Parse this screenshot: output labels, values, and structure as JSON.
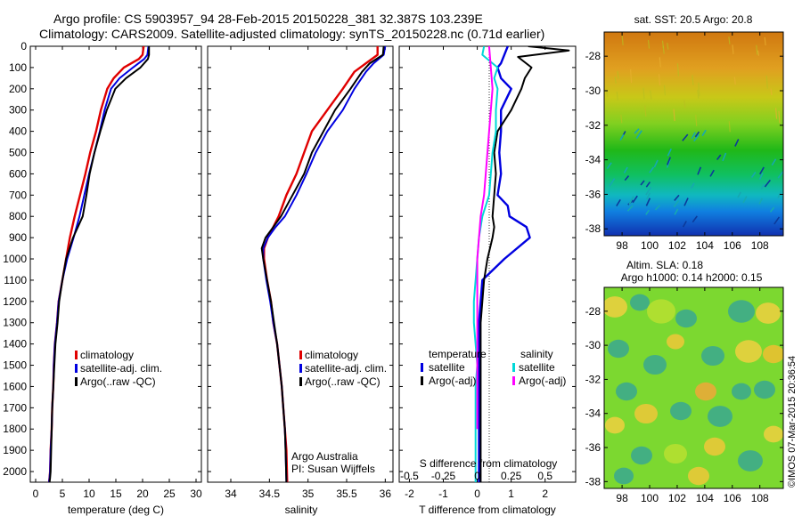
{
  "header": {
    "line1": "Argo profile: CS 5903957_94 28-Feb-2015 20150228_381 32.387S 103.239E",
    "line2": "Climatology: CARS2009. Satellite-adjusted climatology: synTS_20150228.nc (0.71d earlier)"
  },
  "footer": {
    "credit": "Argo Australia",
    "pi": "PI: Susan Wijffels",
    "stamp": "©IMOS 07-Mar-2015 20:36:54"
  },
  "colors": {
    "climatology": "#e00000",
    "satellite": "#0000e0",
    "argo": "#000000",
    "sat_salinity": "#00d8d8",
    "argo_salinity": "#ff00ff"
  },
  "chart_data": [
    {
      "type": "line",
      "panel": "temperature",
      "xlabel": "temperature (deg C)",
      "ylabel": "",
      "xlim": [
        -1,
        31
      ],
      "xticks": [
        0,
        5,
        10,
        15,
        20,
        25,
        30
      ],
      "ylim": [
        2050,
        0
      ],
      "yticks": [
        0,
        100,
        200,
        300,
        400,
        500,
        600,
        700,
        800,
        900,
        1000,
        1100,
        1200,
        1300,
        1400,
        1500,
        1600,
        1700,
        1800,
        1900,
        2000
      ],
      "legend": [
        "climatology",
        "satellite-adj. clim.",
        "Argo(..raw -QC)"
      ],
      "series": [
        {
          "name": "climatology",
          "color": "#e00000",
          "x": [
            20.2,
            20.0,
            19.3,
            16.5,
            14.6,
            13.4,
            12.2,
            11.3,
            10.2,
            9.3,
            8.3,
            7.3,
            6.4,
            5.7,
            5.0,
            4.3,
            4.0,
            3.6,
            3.4,
            3.3,
            3.1,
            3.0,
            2.8,
            2.7,
            2.6,
            2.5
          ],
          "y": [
            0,
            40,
            60,
            100,
            150,
            200,
            300,
            400,
            500,
            600,
            700,
            800,
            900,
            1000,
            1100,
            1200,
            1300,
            1400,
            1500,
            1600,
            1700,
            1800,
            1900,
            2000,
            2030,
            2050
          ]
        },
        {
          "name": "satellite-adj. clim.",
          "color": "#0000e0",
          "x": [
            21.1,
            20.9,
            20.3,
            18.2,
            15.7,
            14.1,
            12.9,
            12.0,
            11.0,
            10.0,
            9.1,
            8.2,
            7.1,
            5.9,
            5.0,
            4.3,
            4.0,
            3.6,
            3.4,
            3.3,
            3.1,
            3.0,
            2.8,
            2.7,
            2.6,
            2.5
          ],
          "y": [
            0,
            40,
            60,
            100,
            150,
            200,
            300,
            400,
            500,
            600,
            700,
            800,
            900,
            1000,
            1100,
            1200,
            1300,
            1400,
            1500,
            1600,
            1700,
            1800,
            1900,
            2000,
            2030,
            2050
          ]
        },
        {
          "name": "Argo(..raw -QC)",
          "color": "#000000",
          "x": [
            21.2,
            21.2,
            21.0,
            19.6,
            16.9,
            14.9,
            13.3,
            12.1,
            11.0,
            10.1,
            9.5,
            8.8,
            7.0,
            5.7,
            5.0,
            4.4,
            4.1,
            3.7,
            3.5,
            3.3,
            3.1,
            3.0,
            2.9,
            2.8,
            2.7,
            2.6
          ],
          "y": [
            0,
            40,
            60,
            100,
            150,
            200,
            300,
            400,
            500,
            600,
            700,
            800,
            900,
            1000,
            1100,
            1200,
            1300,
            1400,
            1500,
            1600,
            1700,
            1800,
            1900,
            2000,
            2030,
            2050
          ]
        }
      ]
    },
    {
      "type": "line",
      "panel": "salinity",
      "xlabel": "salinity",
      "ylabel": "",
      "xlim": [
        33.7,
        36.1
      ],
      "xticks": [
        34,
        34.5,
        35,
        35.5,
        36
      ],
      "ylim": [
        2050,
        0
      ],
      "legend": [
        "climatology",
        "satellite-adj. clim.",
        "Argo(..raw -QC)"
      ],
      "series": [
        {
          "name": "climatology",
          "color": "#e00000",
          "x": [
            35.9,
            35.9,
            35.75,
            35.6,
            35.45,
            35.25,
            35.05,
            34.95,
            34.85,
            34.72,
            34.62,
            34.55,
            34.48,
            34.43,
            34.43,
            34.47,
            34.52,
            34.55,
            34.6,
            34.63,
            34.66,
            34.68,
            34.7,
            34.72,
            34.73
          ],
          "y": [
            0,
            40,
            80,
            120,
            200,
            300,
            400,
            500,
            600,
            700,
            800,
            850,
            900,
            950,
            1000,
            1100,
            1200,
            1300,
            1400,
            1500,
            1600,
            1700,
            1800,
            1900,
            2050
          ]
        },
        {
          "name": "satellite-adj. clim.",
          "color": "#0000e0",
          "x": [
            36.0,
            35.98,
            35.85,
            35.75,
            35.6,
            35.45,
            35.25,
            35.1,
            34.98,
            34.85,
            34.7,
            34.58,
            34.48,
            34.42,
            34.42,
            34.46,
            34.51,
            34.55,
            34.6,
            34.63,
            34.66,
            34.68,
            34.7,
            34.71,
            34.72
          ],
          "y": [
            0,
            40,
            80,
            120,
            200,
            300,
            400,
            500,
            600,
            700,
            800,
            850,
            900,
            950,
            1000,
            1100,
            1200,
            1300,
            1400,
            1500,
            1600,
            1700,
            1800,
            1900,
            2050
          ]
        },
        {
          "name": "Argo(..raw -QC)",
          "color": "#000000",
          "x": [
            35.98,
            35.97,
            35.8,
            35.7,
            35.55,
            35.35,
            35.2,
            35.05,
            34.95,
            34.8,
            34.65,
            34.55,
            34.45,
            34.4,
            34.42,
            34.47,
            34.52,
            34.56,
            34.6,
            34.63,
            34.66,
            34.68,
            34.7,
            34.71,
            34.72
          ],
          "y": [
            0,
            40,
            80,
            120,
            200,
            300,
            400,
            500,
            600,
            700,
            800,
            850,
            900,
            950,
            1000,
            1100,
            1200,
            1300,
            1400,
            1500,
            1600,
            1700,
            1800,
            1900,
            2050
          ]
        }
      ]
    },
    {
      "type": "line",
      "panel": "difference",
      "xlabel": "T difference from climatology",
      "xlabel_top": "S difference from climatology",
      "ylabel": "",
      "xlim": [
        -2.3,
        2.9
      ],
      "xticks": [
        -2,
        -1,
        0,
        1,
        2
      ],
      "xticks_top": [
        "-0.5",
        "-0.25",
        "0",
        "0.25",
        "0.5"
      ],
      "ylim": [
        2050,
        0
      ],
      "legend": {
        "temperature": "temperature",
        "salinity": "salinity",
        "items": [
          "satellite",
          "Argo(-adj)",
          "satellite",
          "Argo(-adj)"
        ]
      },
      "series": [
        {
          "name": "satellite",
          "color": "#0000e0",
          "x": [
            0.9,
            0.8,
            0.7,
            0.6,
            0.7,
            1.0,
            0.7,
            0.7,
            0.65,
            0.7,
            0.6,
            0.9,
            0.95,
            1.45,
            1.55,
            0.8,
            0.15,
            0.1,
            0.05,
            0.05,
            0.05,
            0.05,
            0.05,
            0.05,
            0.05,
            0.05,
            0.05
          ],
          "y": [
            0,
            40,
            80,
            100,
            150,
            200,
            300,
            400,
            500,
            600,
            700,
            750,
            800,
            850,
            900,
            1000,
            1100,
            1200,
            1300,
            1400,
            1500,
            1600,
            1700,
            1800,
            1900,
            2000,
            2050
          ]
        },
        {
          "name": "Argo(-adj)",
          "color": "#000000",
          "x": [
            1.5,
            2.7,
            1.2,
            1.6,
            1.4,
            1.3,
            1.0,
            0.6,
            0.5,
            0.55,
            0.5,
            0.45,
            0.5,
            0.45,
            0.3,
            0.2,
            0.15,
            0.1,
            0.1,
            0.1,
            0.1,
            0.1,
            0.1,
            0.1,
            0.1,
            0.1
          ],
          "y": [
            0,
            20,
            50,
            100,
            150,
            200,
            300,
            400,
            500,
            600,
            700,
            800,
            850,
            900,
            1000,
            1100,
            1200,
            1300,
            1400,
            1500,
            1600,
            1700,
            1800,
            1900,
            2000,
            2050
          ]
        },
        {
          "name": "satellite",
          "color": "#00d8d8",
          "x": [
            0.2,
            0.15,
            0.6,
            0.5,
            0.6,
            0.55,
            0.55,
            0.45,
            0.4,
            0.35,
            0.15,
            0.05,
            0.0,
            -0.05,
            -0.1,
            -0.1,
            -0.05,
            0.0,
            -0.05,
            -0.05,
            -0.05,
            -0.05,
            -0.05,
            -0.05
          ],
          "y": [
            0,
            40,
            100,
            150,
            200,
            300,
            400,
            500,
            600,
            700,
            800,
            900,
            1000,
            1100,
            1200,
            1300,
            1400,
            1500,
            1600,
            1700,
            1800,
            1900,
            2000,
            2050
          ]
        },
        {
          "name": "Argo(-adj)",
          "color": "#ff00ff",
          "x": [
            0.35,
            0.4,
            0.45,
            0.4,
            0.35,
            0.3,
            0.25,
            0.2,
            0.1,
            0.05,
            0.0,
            0.0,
            0.0,
            0.0,
            0.0,
            0.0
          ],
          "y": [
            0,
            100,
            200,
            300,
            400,
            500,
            600,
            700,
            800,
            900,
            1000,
            1100,
            1200,
            1300,
            1500,
            1800
          ]
        }
      ]
    },
    {
      "type": "heatmap",
      "panel": "sst_map",
      "title": "sat. SST: 20.5 Argo: 20.8",
      "xticks": [
        98,
        100,
        102,
        104,
        106,
        108
      ],
      "yticks": [
        -28,
        -30,
        -32,
        -34,
        -36,
        -38
      ],
      "xlim": [
        96.7,
        109.7
      ],
      "ylim": [
        -38.4,
        -26.6
      ]
    },
    {
      "type": "heatmap",
      "panel": "sla_map",
      "title": "Altim. SLA: 0.18",
      "subtitle": "Argo h1000: 0.14 h2000: 0.15",
      "xticks": [
        98,
        100,
        102,
        104,
        106,
        108
      ],
      "yticks": [
        -28,
        -30,
        -32,
        -34,
        -36,
        -38
      ],
      "xlim": [
        96.7,
        109.7
      ],
      "ylim": [
        -38.4,
        -26.6
      ]
    }
  ]
}
